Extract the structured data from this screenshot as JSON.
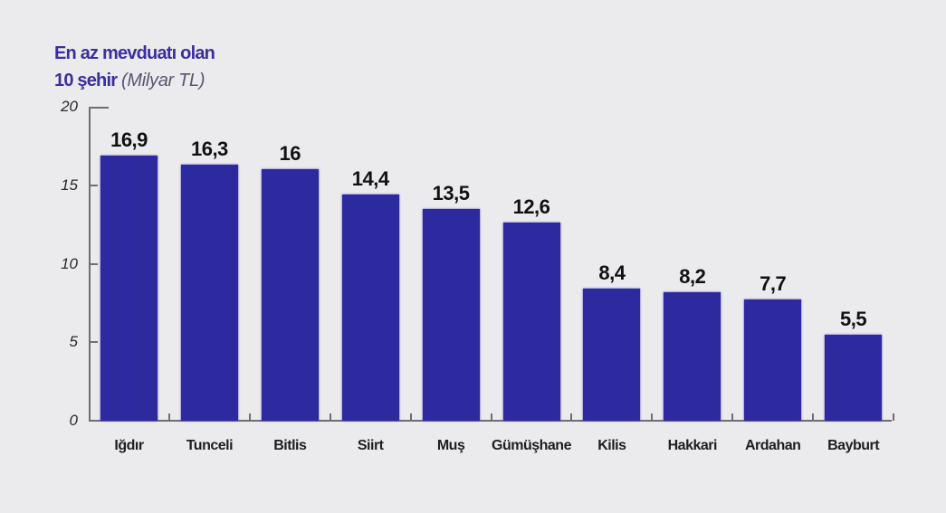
{
  "title": {
    "line1": "En az mevduatı olan",
    "line2": "10 şehir",
    "unit": "(Milyar TL)"
  },
  "axis": {
    "y_ticks": [
      "0",
      "5",
      "10",
      "15",
      "20"
    ]
  },
  "chart_data": {
    "type": "bar",
    "title": "En az mevduatı olan 10 şehir (Milyar TL)",
    "xlabel": "",
    "ylabel": "Milyar TL",
    "ylim": [
      0,
      20
    ],
    "yticks": [
      0,
      5,
      10,
      15,
      20
    ],
    "grid": false,
    "bar_color": "#2c2a9e",
    "categories": [
      "Iğdır",
      "Tunceli",
      "Bitlis",
      "Siirt",
      "Muş",
      "Gümüşhane",
      "Kilis",
      "Hakkari",
      "Ardahan",
      "Bayburt"
    ],
    "values": [
      16.9,
      16.3,
      16,
      14.4,
      13.5,
      12.6,
      8.4,
      8.2,
      7.7,
      5.5
    ],
    "value_labels": [
      "16,9",
      "16,3",
      "16",
      "14,4",
      "13,5",
      "12,6",
      "8,4",
      "8,2",
      "7,7",
      "5,5"
    ]
  }
}
